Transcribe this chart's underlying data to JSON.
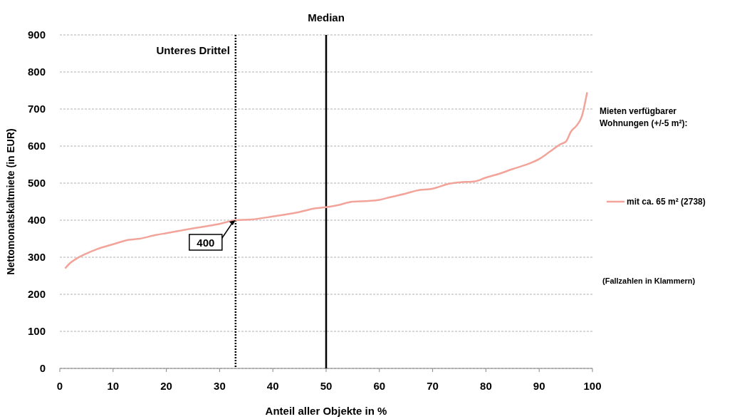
{
  "chart_data": {
    "type": "line",
    "xlabel": "Anteil aller Objekte in %",
    "ylabel": "Nettomonatskaltmiete (in EUR)",
    "legend_title": "Mieten verfügbarer Wohnungen (+/-5 m²):",
    "x": [
      1,
      2,
      3,
      5,
      7,
      10,
      13,
      15,
      18,
      20,
      25,
      30,
      33,
      36,
      40,
      45,
      48,
      50,
      52,
      55,
      58,
      60,
      62,
      65,
      67,
      70,
      73,
      75,
      78,
      80,
      82,
      85,
      88,
      90,
      92,
      94,
      95,
      96,
      97,
      98,
      99
    ],
    "series": [
      {
        "name": "mit ca. 65 m² (2738)",
        "color": "#f2a49a",
        "values": [
          270,
          285,
          295,
          310,
          322,
          335,
          347,
          350,
          360,
          365,
          378,
          390,
          400,
          402,
          410,
          422,
          432,
          435,
          440,
          450,
          452,
          455,
          462,
          472,
          480,
          485,
          498,
          502,
          505,
          515,
          523,
          538,
          552,
          565,
          585,
          605,
          612,
          640,
          655,
          680,
          745
        ]
      }
    ],
    "xlim": [
      0,
      100
    ],
    "xticks": [
      0,
      10,
      20,
      30,
      40,
      50,
      60,
      70,
      80,
      90,
      100
    ],
    "ylim": [
      0,
      900
    ],
    "yticks": [
      0,
      100,
      200,
      300,
      400,
      500,
      600,
      700,
      800,
      900
    ],
    "grid": "y",
    "legend": "right",
    "marker": "none",
    "ref_lines": [
      {
        "axis": "x",
        "value": 33,
        "label": "Unteres Drittel",
        "line_style": "dotted",
        "color": "#000000"
      },
      {
        "axis": "x",
        "value": 50,
        "label": "Median",
        "line_style": "solid",
        "color": "#000000"
      }
    ],
    "annotations": [
      {
        "text": "400",
        "x": 33,
        "y": 400
      },
      "(Fallzahlen in Klammern)"
    ]
  }
}
